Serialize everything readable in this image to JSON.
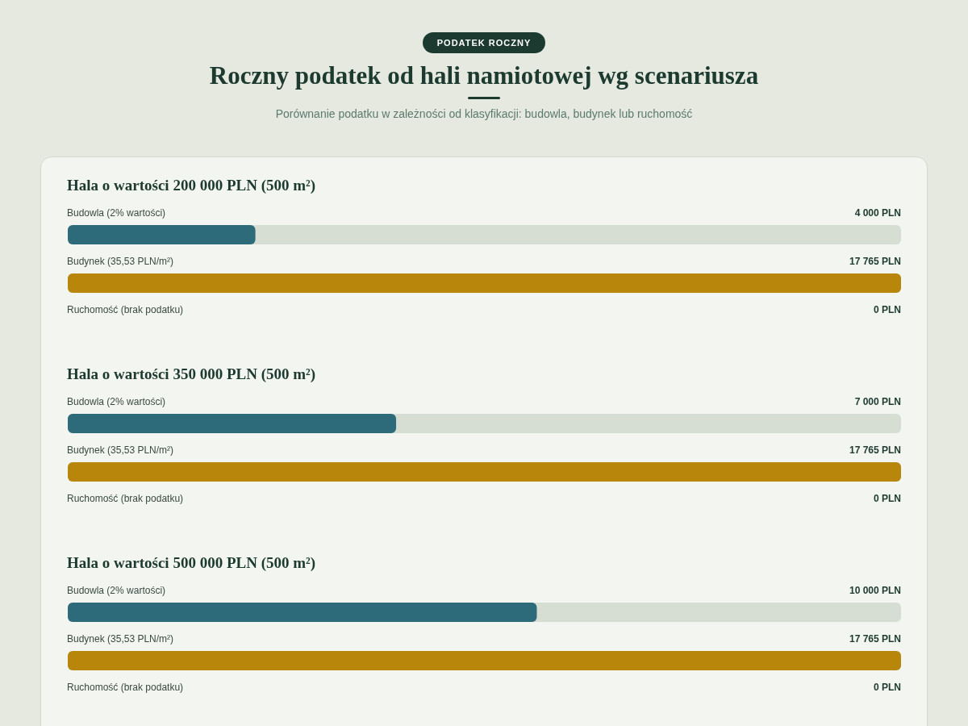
{
  "chart_data": [
    {
      "type": "other",
      "title": "Roczny podatek od hali namiotowej wg scenariusza",
      "subtitle": "Porównanie podatku w zależności od klasyfikacji: budowla, budynek lub ruchomość",
      "annotations": [
        "PODATEK ROCZNY"
      ]
    },
    {
      "type": "bar",
      "orientation": "horizontal",
      "title": "Hala o wartości 200 000 PLN (500 m²)",
      "categories": [
        "Budowla (2% wartości)",
        "Budynek (35,53 PLN/m²)",
        "Ruchomość (brak podatku)"
      ],
      "values": [
        4000,
        17765,
        0
      ],
      "colors": [
        "#2e6b7a",
        "#b8860b",
        "#2e7d57"
      ],
      "value_labels": [
        "4 000 PLN",
        "17 765 PLN",
        "0 PLN"
      ],
      "xlim": [
        0,
        17765
      ],
      "tick_labels": false
    },
    {
      "type": "bar",
      "orientation": "horizontal",
      "title": "Hala o wartości 350 000 PLN (500 m²)",
      "categories": [
        "Budowla (2% wartości)",
        "Budynek (35,53 PLN/m²)",
        "Ruchomość (brak podatku)"
      ],
      "values": [
        7000,
        17765,
        0
      ],
      "colors": [
        "#2e6b7a",
        "#b8860b",
        "#2e7d57"
      ],
      "value_labels": [
        "7 000 PLN",
        "17 765 PLN",
        "0 PLN"
      ],
      "xlim": [
        0,
        17765
      ],
      "tick_labels": false
    },
    {
      "type": "bar",
      "orientation": "horizontal",
      "title": "Hala o wartości 500 000 PLN (500 m²)",
      "categories": [
        "Budowla (2% wartości)",
        "Budynek (35,53 PLN/m²)",
        "Ruchomość (brak podatku)"
      ],
      "values": [
        10000,
        17765,
        0
      ],
      "colors": [
        "#2e6b7a",
        "#b8860b",
        "#2e7d57"
      ],
      "value_labels": [
        "10 000 PLN",
        "17 765 PLN",
        "0 PLN"
      ],
      "xlim": [
        0,
        17765
      ],
      "tick_labels": false
    }
  ]
}
